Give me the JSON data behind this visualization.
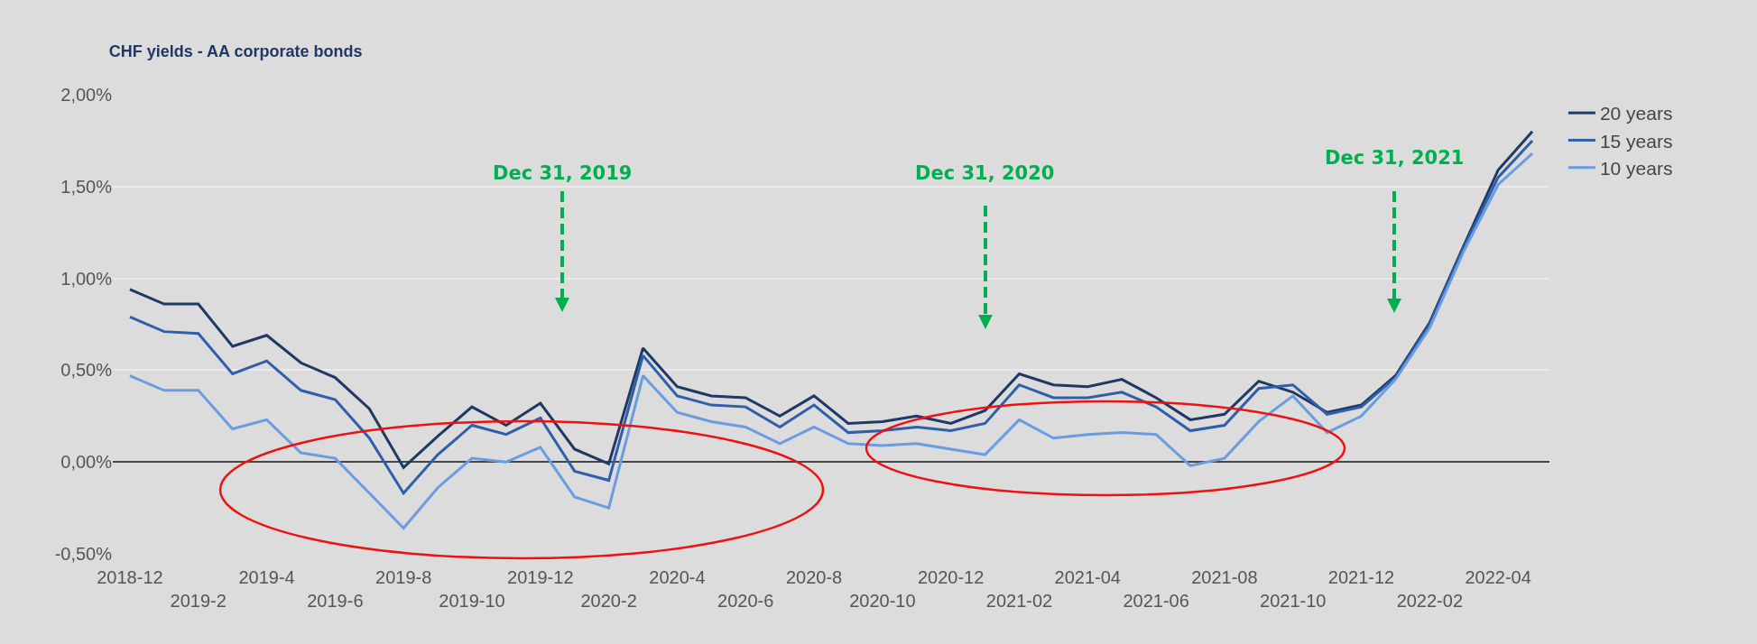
{
  "chart_data": {
    "type": "line",
    "title": "CHF yields - AA corporate bonds",
    "categories": [
      "2018-12",
      null,
      "2019-2",
      null,
      "2019-4",
      null,
      "2019-6",
      null,
      "2019-8",
      null,
      "2019-10",
      null,
      "2019-12",
      null,
      "2020-2",
      null,
      "2020-4",
      null,
      "2020-6",
      null,
      "2020-8",
      null,
      "2020-10",
      null,
      "2020-12",
      null,
      "2021-02",
      null,
      "2021-04",
      null,
      "2021-06",
      null,
      "2021-08",
      null,
      "2021-10",
      null,
      "2021-12",
      null,
      "2022-02",
      null,
      "2022-04",
      null
    ],
    "series": [
      {
        "name": "20 years",
        "color": "#1f3864",
        "values": [
          0.94,
          0.86,
          0.86,
          0.63,
          0.69,
          0.54,
          0.46,
          0.29,
          -0.03,
          0.14,
          0.3,
          0.2,
          0.32,
          0.07,
          -0.01,
          0.62,
          0.41,
          0.36,
          0.35,
          0.25,
          0.36,
          0.21,
          0.22,
          0.25,
          0.21,
          0.28,
          0.48,
          0.42,
          0.41,
          0.45,
          0.35,
          0.23,
          0.26,
          0.44,
          0.38,
          0.27,
          0.31,
          0.47,
          0.76,
          1.18,
          1.59,
          1.8
        ]
      },
      {
        "name": "15 years",
        "color": "#2e5fa8",
        "values": [
          0.79,
          0.71,
          0.7,
          0.48,
          0.55,
          0.39,
          0.34,
          0.13,
          -0.17,
          0.04,
          0.2,
          0.15,
          0.24,
          -0.05,
          -0.1,
          0.58,
          0.36,
          0.31,
          0.3,
          0.19,
          0.31,
          0.16,
          0.17,
          0.19,
          0.17,
          0.21,
          0.42,
          0.35,
          0.35,
          0.38,
          0.3,
          0.17,
          0.2,
          0.4,
          0.42,
          0.26,
          0.3,
          0.46,
          0.75,
          1.17,
          1.55,
          1.75
        ]
      },
      {
        "name": "10 years",
        "color": "#6a9de0",
        "values": [
          0.47,
          0.39,
          0.39,
          0.18,
          0.23,
          0.05,
          0.02,
          -0.17,
          -0.36,
          -0.14,
          0.02,
          0.0,
          0.08,
          -0.19,
          -0.25,
          0.47,
          0.27,
          0.22,
          0.19,
          0.1,
          0.19,
          0.1,
          0.09,
          0.1,
          0.07,
          0.04,
          0.23,
          0.13,
          0.15,
          0.16,
          0.15,
          -0.02,
          0.02,
          0.22,
          0.36,
          0.16,
          0.25,
          0.45,
          0.73,
          1.15,
          1.51,
          1.68
        ]
      }
    ],
    "ylim": [
      -0.5,
      2.0
    ],
    "yticks": [
      {
        "value": -0.5,
        "label": "-0,50%"
      },
      {
        "value": 0,
        "label": "0,00%"
      },
      {
        "value": 0.5,
        "label": "0,50%"
      },
      {
        "value": 1,
        "label": "1,00%"
      },
      {
        "value": 1.5,
        "label": "1,50%"
      },
      {
        "value": 2,
        "label": "2,00%"
      }
    ],
    "grid": "y",
    "legend": "top right",
    "line_style": "solid",
    "annotations": [
      "Dec 31, 2019",
      "Dec 31, 2020",
      "Dec 31, 2021"
    ]
  }
}
